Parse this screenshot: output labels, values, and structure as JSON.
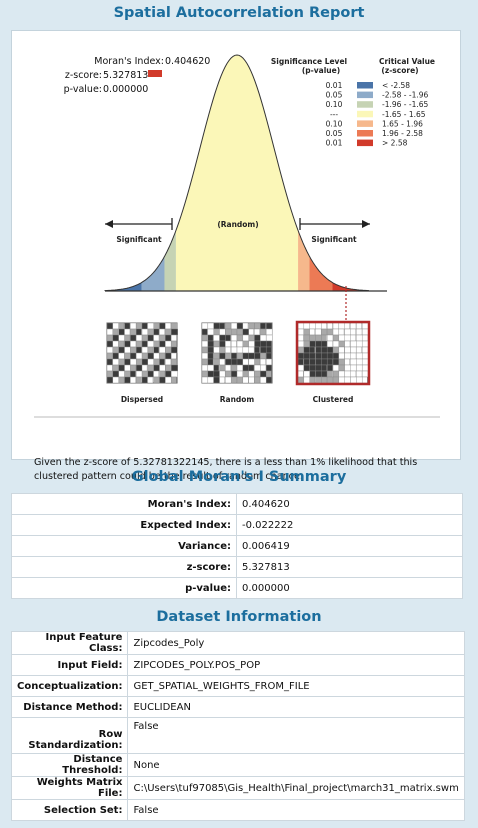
{
  "report_title": "Spatial Autocorrelation Report",
  "chart": {
    "stats": {
      "morans_label": "Moran's Index:",
      "morans_value": "0.404620",
      "z_label": "z-score:",
      "z_value": "5.327813",
      "p_label": "p-value:",
      "p_value": "0.000000"
    },
    "legend": {
      "sig_header_1": "Significance Level",
      "sig_header_2": "(p-value)",
      "crit_header_1": "Critical Value",
      "crit_header_2": "(z-score)",
      "rows": [
        {
          "p": "0.01",
          "z": "< -2.58",
          "color": "#4a74a8"
        },
        {
          "p": "0.05",
          "z": "-2.58 - -1.96",
          "color": "#8eabc9"
        },
        {
          "p": "0.10",
          "z": "-1.96 - -1.65",
          "color": "#c6d3b4"
        },
        {
          "p": "---",
          "z": "-1.65 - 1.65",
          "color": "#fbf7b8"
        },
        {
          "p": "0.10",
          "z": "1.65 - 1.96",
          "color": "#f6b88c"
        },
        {
          "p": "0.05",
          "z": "1.96 - 2.58",
          "color": "#ec7a55"
        },
        {
          "p": "0.01",
          "z": "> 2.58",
          "color": "#d13a2a"
        }
      ]
    },
    "label_significant_left": "Significant",
    "label_random": "(Random)",
    "label_significant_right": "Significant",
    "patterns": [
      "Dispersed",
      "Random",
      "Clustered"
    ]
  },
  "caption": "Given the z-score of 5.32781322145, there is a less than 1% likelihood that this clustered pattern could be the result of random chance.",
  "summary_title": "Global Moran's I Summary",
  "summary": [
    {
      "label": "Moran's Index:",
      "value": "0.404620"
    },
    {
      "label": "Expected Index:",
      "value": "-0.022222"
    },
    {
      "label": "Variance:",
      "value": "0.006419"
    },
    {
      "label": "z-score:",
      "value": "5.327813"
    },
    {
      "label": "p-value:",
      "value": "0.000000"
    }
  ],
  "dataset_title": "Dataset Information",
  "dataset": [
    {
      "label": "Input Feature Class:",
      "value": "Zipcodes_Poly"
    },
    {
      "label": "Input Field:",
      "value": "ZIPCODES_POLY.POS_POP"
    },
    {
      "label": "Conceptualization:",
      "value": "GET_SPATIAL_WEIGHTS_FROM_FILE"
    },
    {
      "label": "Distance Method:",
      "value": "EUCLIDEAN"
    },
    {
      "label": "Row Standardization:",
      "value": "False"
    },
    {
      "label": "Distance Threshold:",
      "value": "None"
    },
    {
      "label": "Weights Matrix File:",
      "value": "C:\\Users\\tuf97085\\Gis_Health\\Final_project\\march31_matrix.swm"
    },
    {
      "label": "Selection Set:",
      "value": "False"
    }
  ]
}
